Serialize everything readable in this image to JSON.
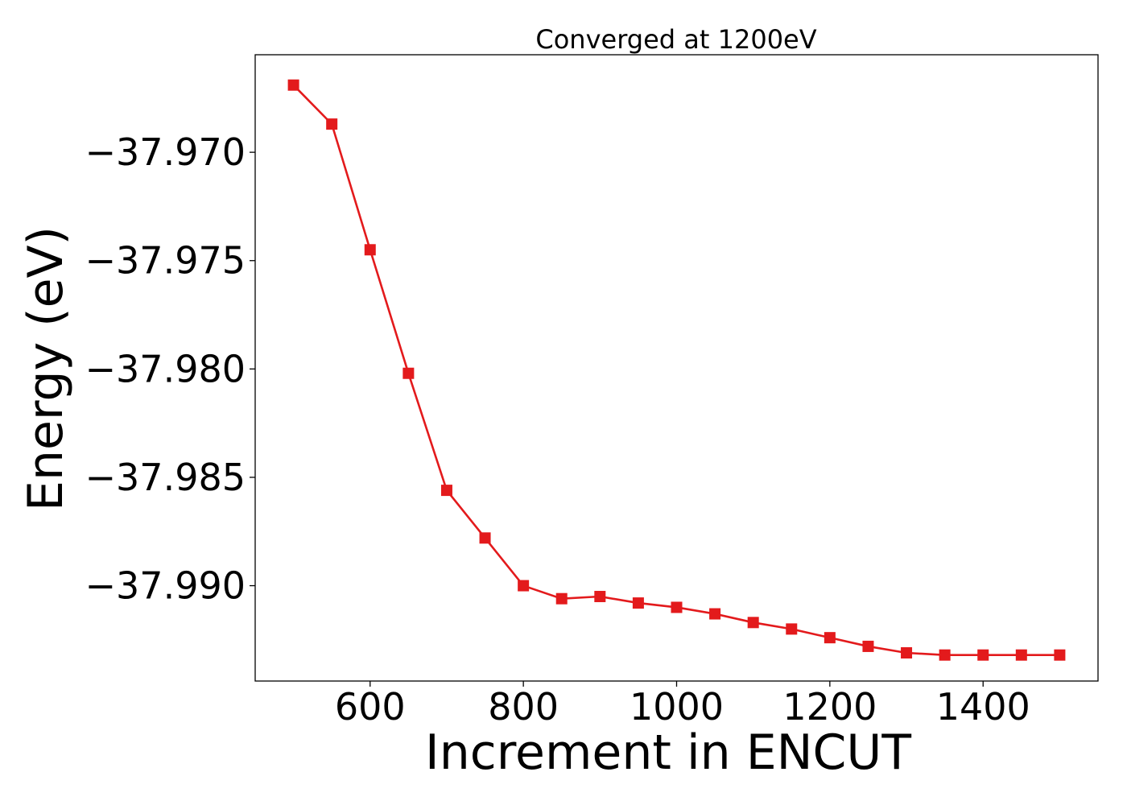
{
  "chart_data": {
    "type": "line",
    "title": "Converged at 1200eV",
    "xlabel": "Increment in ENCUT",
    "ylabel": "Energy (eV)",
    "xlim": [
      450,
      1550
    ],
    "ylim": [
      -37.9944,
      -37.9655
    ],
    "x_ticks": [
      600,
      800,
      1000,
      1200,
      1400
    ],
    "y_ticks": [
      -37.97,
      -37.975,
      -37.98,
      -37.985,
      -37.99
    ],
    "x_tick_labels": [
      "600",
      "800",
      "1000",
      "1200",
      "1400"
    ],
    "y_tick_labels": [
      "−37.970",
      "−37.975",
      "−37.980",
      "−37.985",
      "−37.990"
    ],
    "grid": false,
    "series": [
      {
        "color": "#e31a1c",
        "marker": "square",
        "x": [
          500,
          550,
          600,
          650,
          700,
          750,
          800,
          850,
          900,
          950,
          1000,
          1050,
          1100,
          1150,
          1200,
          1250,
          1300,
          1350,
          1400,
          1450,
          1500
        ],
        "y": [
          -37.9669,
          -37.9687,
          -37.9745,
          -37.9802,
          -37.9856,
          -37.9878,
          -37.99,
          -37.9906,
          -37.9905,
          -37.9908,
          -37.991,
          -37.9913,
          -37.9917,
          -37.992,
          -37.9924,
          -37.9928,
          -37.9931,
          -37.9932,
          -37.9932,
          -37.9932,
          -37.9932
        ]
      }
    ]
  }
}
